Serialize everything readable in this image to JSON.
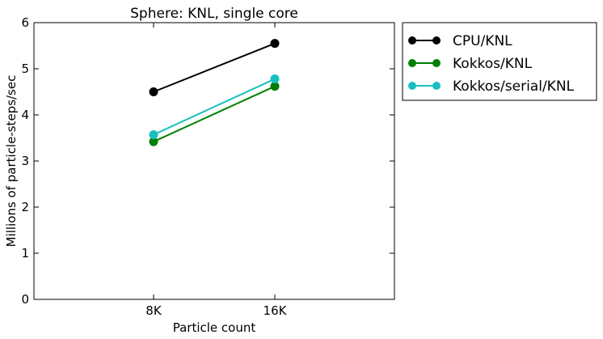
{
  "chart_data": {
    "type": "line",
    "title": "Sphere: KNL, single core",
    "xlabel": "Particle count",
    "ylabel": "Millions of particle-steps/sec",
    "categories": [
      "8K",
      "16K"
    ],
    "ylim": [
      0,
      6
    ],
    "yticks": [
      "0",
      "1",
      "2",
      "3",
      "4",
      "5",
      "6"
    ],
    "grid": false,
    "legend_position": "outside-right",
    "series": [
      {
        "name": "CPU/KNL",
        "values": [
          4.5,
          5.55
        ],
        "color": "#000000"
      },
      {
        "name": "Kokkos/KNL",
        "values": [
          3.42,
          4.62
        ],
        "color": "#007f00"
      },
      {
        "name": "Kokkos/serial/KNL",
        "values": [
          3.57,
          4.78
        ],
        "color": "#19bfbf"
      }
    ]
  }
}
